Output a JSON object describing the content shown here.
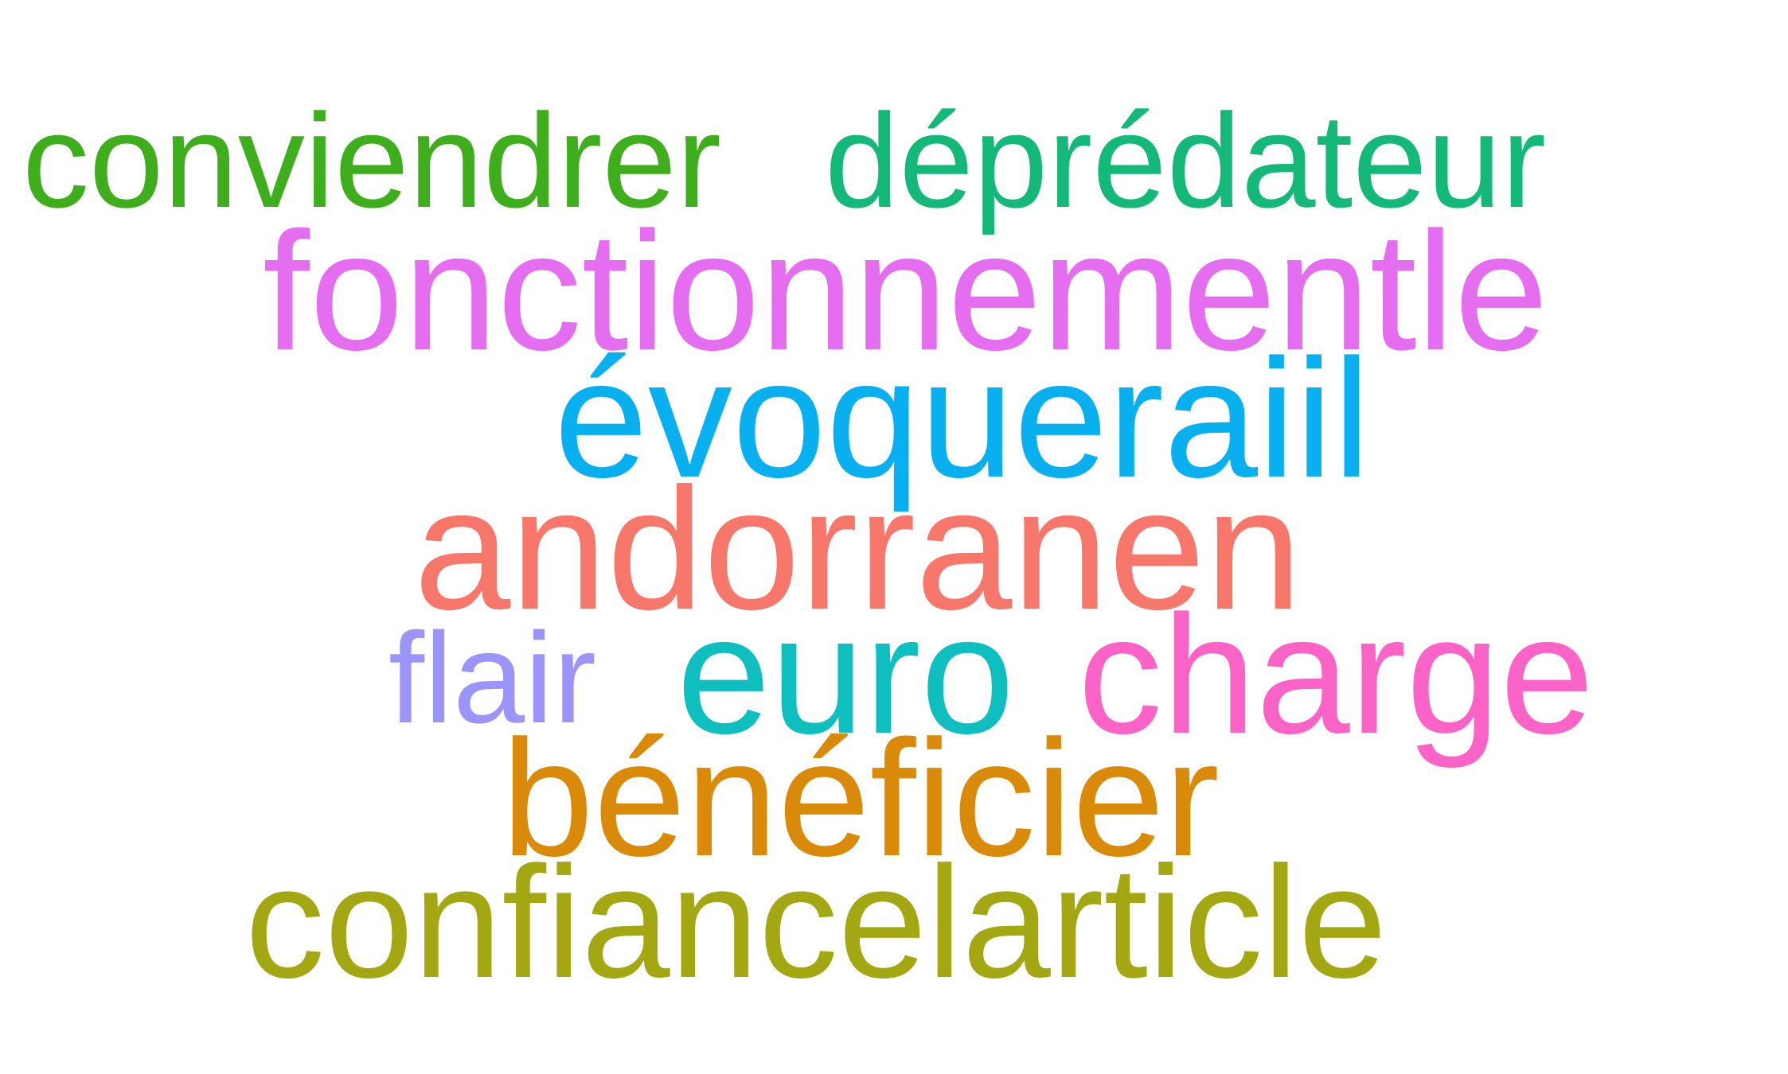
{
  "words": [
    {
      "text": "conviendrer",
      "color": "#3fae1c"
    },
    {
      "text": "déprédateur",
      "color": "#14b878"
    },
    {
      "text": "fonctionnementle",
      "color": "#e46df0"
    },
    {
      "text": "évoqueraiil",
      "color": "#08b0ef"
    },
    {
      "text": "andorranen",
      "color": "#f7786b"
    },
    {
      "text": "flair",
      "color": "#9b95fb"
    },
    {
      "text": "euro",
      "color": "#0fbfbf"
    },
    {
      "text": "charge",
      "color": "#fb63c6"
    },
    {
      "text": "bénéficier",
      "color": "#d98a09"
    },
    {
      "text": "confiancelarticle",
      "color": "#a3a712"
    }
  ]
}
